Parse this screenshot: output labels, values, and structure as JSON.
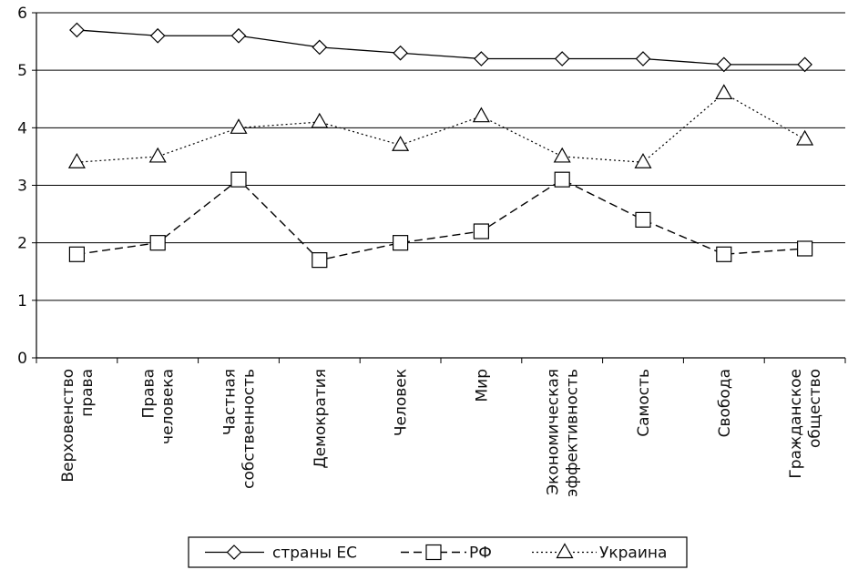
{
  "chart_data": {
    "type": "line",
    "title": "",
    "xlabel": "",
    "ylabel": "",
    "ylim": [
      0,
      6
    ],
    "yticks": [
      0,
      1,
      2,
      3,
      4,
      5,
      6
    ],
    "grid": "horizontal",
    "legend_position": "bottom",
    "categories": [
      [
        "Верховенство",
        "права"
      ],
      [
        "Права",
        "человека"
      ],
      [
        "Частная",
        "собственность"
      ],
      [
        "Демократия"
      ],
      [
        "Человек"
      ],
      [
        "Мир"
      ],
      [
        "Экономическая",
        "эффективность"
      ],
      [
        "Самость"
      ],
      [
        "Свобода"
      ],
      [
        "Гражданское",
        "общество"
      ]
    ],
    "series": [
      {
        "name": "страны ЕС",
        "marker": "diamond",
        "line": "solid",
        "values": [
          5.7,
          5.6,
          5.6,
          5.4,
          5.3,
          5.2,
          5.2,
          5.2,
          5.1,
          5.1
        ]
      },
      {
        "name": "РФ",
        "marker": "square",
        "line": "dashed",
        "values": [
          1.8,
          2.0,
          3.1,
          1.7,
          2.0,
          2.2,
          3.1,
          2.4,
          1.8,
          1.9
        ]
      },
      {
        "name": "Украина",
        "marker": "triangle",
        "line": "dotted",
        "values": [
          3.4,
          3.5,
          4.0,
          4.1,
          3.7,
          4.2,
          3.5,
          3.4,
          4.6,
          3.8
        ]
      }
    ]
  }
}
